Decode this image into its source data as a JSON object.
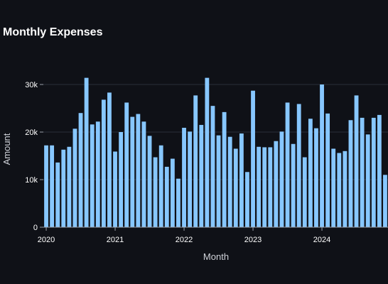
{
  "chart_data": {
    "type": "bar",
    "title": "Monthly Expenses",
    "xlabel": "Month",
    "ylabel": "Amount",
    "ylim": [
      0,
      30000
    ],
    "yticks": [
      0,
      10000,
      20000,
      30000
    ],
    "yticklabels": [
      "0",
      "10k",
      "20k",
      "30k"
    ],
    "xticklabels": [
      "2020",
      "2021",
      "2022",
      "2023",
      "2024"
    ],
    "grid": true,
    "bar_color": "#87c7ff",
    "background_color": "#0f1117",
    "grid_color": "#2a2e39",
    "categories": [
      "2020-01",
      "2020-02",
      "2020-03",
      "2020-04",
      "2020-05",
      "2020-06",
      "2020-07",
      "2020-08",
      "2020-09",
      "2020-10",
      "2020-11",
      "2020-12",
      "2021-01",
      "2021-02",
      "2021-03",
      "2021-04",
      "2021-05",
      "2021-06",
      "2021-07",
      "2021-08",
      "2021-09",
      "2021-10",
      "2021-11",
      "2021-12",
      "2022-01",
      "2022-02",
      "2022-03",
      "2022-04",
      "2022-05",
      "2022-06",
      "2022-07",
      "2022-08",
      "2022-09",
      "2022-10",
      "2022-11",
      "2022-12",
      "2023-01",
      "2023-02",
      "2023-03",
      "2023-04",
      "2023-05",
      "2023-06",
      "2023-07",
      "2023-08",
      "2023-09",
      "2023-10",
      "2023-11",
      "2023-12",
      "2024-01",
      "2024-02",
      "2024-03",
      "2024-04",
      "2024-05",
      "2024-06",
      "2024-07",
      "2024-08",
      "2024-09",
      "2024-10",
      "2024-11",
      "2024-12"
    ],
    "values": [
      17200,
      17200,
      13600,
      16300,
      16900,
      20700,
      24000,
      31400,
      21600,
      22200,
      26800,
      28300,
      15900,
      20000,
      26200,
      23200,
      23800,
      22200,
      19200,
      14700,
      17200,
      12700,
      14400,
      10200,
      20900,
      20100,
      27700,
      21500,
      31400,
      25500,
      19300,
      24200,
      19000,
      16500,
      19700,
      11600,
      28700,
      16900,
      16800,
      16800,
      18100,
      20100,
      26200,
      17500,
      25900,
      14700,
      22800,
      20800,
      30000,
      23900,
      16500,
      15600,
      16000,
      22500,
      27700,
      23000,
      19500,
      23000,
      23600,
      11000
    ]
  }
}
